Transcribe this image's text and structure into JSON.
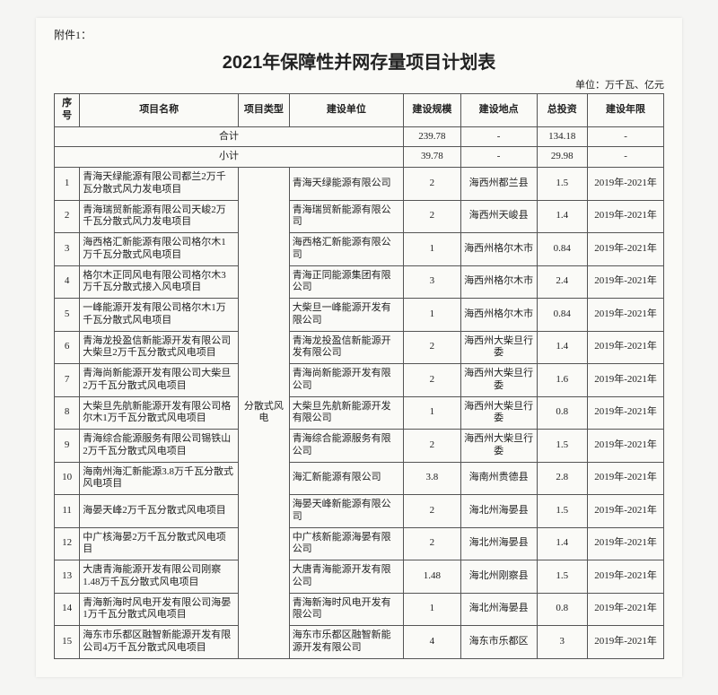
{
  "attachment_label": "附件1：",
  "title": "2021年保障性并网存量项目计划表",
  "unit_note": "单位：万千瓦、亿元",
  "columns": {
    "idx": "序号",
    "name": "项目名称",
    "type": "项目类型",
    "unit": "建设单位",
    "scale": "建设规模",
    "location": "建设地点",
    "investment": "总投资",
    "years": "建设年限"
  },
  "totals": {
    "grand_label": "合计",
    "grand_scale": "239.78",
    "grand_loc": "-",
    "grand_inv": "134.18",
    "grand_years": "-",
    "sub_label": "小计",
    "sub_scale": "39.78",
    "sub_loc": "-",
    "sub_inv": "29.98",
    "sub_years": "-"
  },
  "project_type": "分散式风电",
  "rows": [
    {
      "idx": "1",
      "name": "青海天绿能源有限公司都兰2万千瓦分散式风力发电项目",
      "unit": "青海天绿能源有限公司",
      "scale": "2",
      "loc": "海西州都兰县",
      "inv": "1.5",
      "yr": "2019年-2021年"
    },
    {
      "idx": "2",
      "name": "青海瑞贸新能源有限公司天峻2万千瓦分散式风力发电项目",
      "unit": "青海瑞贸新能源有限公司",
      "scale": "2",
      "loc": "海西州天峻县",
      "inv": "1.4",
      "yr": "2019年-2021年"
    },
    {
      "idx": "3",
      "name": "海西格汇新能源有限公司格尔木1万千瓦分散式风电项目",
      "unit": "海西格汇新能源有限公司",
      "scale": "1",
      "loc": "海西州格尔木市",
      "inv": "0.84",
      "yr": "2019年-2021年"
    },
    {
      "idx": "4",
      "name": "格尔木正同风电有限公司格尔木3万千瓦分散式接入风电项目",
      "unit": "青海正同能源集团有限公司",
      "scale": "3",
      "loc": "海西州格尔木市",
      "inv": "2.4",
      "yr": "2019年-2021年"
    },
    {
      "idx": "5",
      "name": "一峰能源开发有限公司格尔木1万千瓦分散式风电项目",
      "unit": "大柴旦一峰能源开发有限公司",
      "scale": "1",
      "loc": "海西州格尔木市",
      "inv": "0.84",
      "yr": "2019年-2021年"
    },
    {
      "idx": "6",
      "name": "青海龙投盈信新能源开发有限公司大柴旦2万千瓦分散式风电项目",
      "unit": "青海龙投盈信新能源开发有限公司",
      "scale": "2",
      "loc": "海西州大柴旦行委",
      "inv": "1.4",
      "yr": "2019年-2021年"
    },
    {
      "idx": "7",
      "name": "青海尚新能源开发有限公司大柴旦2万千瓦分散式风电项目",
      "unit": "青海尚新能源开发有限公司",
      "scale": "2",
      "loc": "海西州大柴旦行委",
      "inv": "1.6",
      "yr": "2019年-2021年"
    },
    {
      "idx": "8",
      "name": "大柴旦先航新能源开发有限公司格尔木1万千瓦分散式风电项目",
      "unit": "大柴旦先航新能源开发有限公司",
      "scale": "1",
      "loc": "海西州大柴旦行委",
      "inv": "0.8",
      "yr": "2019年-2021年"
    },
    {
      "idx": "9",
      "name": "青海综合能源服务有限公司锡铁山2万千瓦分散式风电项目",
      "unit": "青海综合能源服务有限公司",
      "scale": "2",
      "loc": "海西州大柴旦行委",
      "inv": "1.5",
      "yr": "2019年-2021年"
    },
    {
      "idx": "10",
      "name": "海南州海汇新能源3.8万千瓦分散式风电项目",
      "unit": "海汇新能源有限公司",
      "scale": "3.8",
      "loc": "海南州贵德县",
      "inv": "2.8",
      "yr": "2019年-2021年"
    },
    {
      "idx": "11",
      "name": "海晏天峰2万千瓦分散式风电项目",
      "unit": "海晏天峰新能源有限公司",
      "scale": "2",
      "loc": "海北州海晏县",
      "inv": "1.5",
      "yr": "2019年-2021年"
    },
    {
      "idx": "12",
      "name": "中广核海晏2万千瓦分散式风电项目",
      "unit": "中广核新能源海晏有限公司",
      "scale": "2",
      "loc": "海北州海晏县",
      "inv": "1.4",
      "yr": "2019年-2021年"
    },
    {
      "idx": "13",
      "name": "大唐青海能源开发有限公司刚察1.48万千瓦分散式风电项目",
      "unit": "大唐青海能源开发有限公司",
      "scale": "1.48",
      "loc": "海北州刚察县",
      "inv": "1.5",
      "yr": "2019年-2021年"
    },
    {
      "idx": "14",
      "name": "青海新海时风电开发有限公司海晏1万千瓦分散式风电项目",
      "unit": "青海新海时风电开发有限公司",
      "scale": "1",
      "loc": "海北州海晏县",
      "inv": "0.8",
      "yr": "2019年-2021年"
    },
    {
      "idx": "15",
      "name": "海东市乐都区融智新能源开发有限公司4万千瓦分散式风电项目",
      "unit": "海东市乐都区融智新能源开发有限公司",
      "scale": "4",
      "loc": "海东市乐都区",
      "inv": "3",
      "yr": "2019年-2021年"
    }
  ]
}
